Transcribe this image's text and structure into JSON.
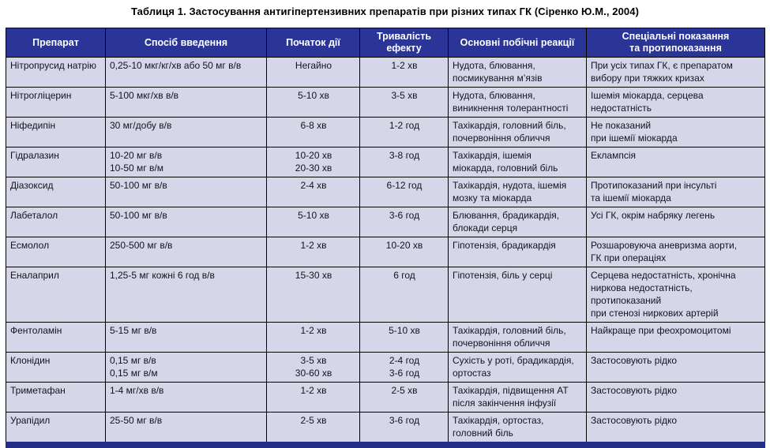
{
  "title": "Таблиця 1. Застосування антигіпертензивних препаратів при різних типах ГК (Сіренко Ю.М., 2004)",
  "colors": {
    "header_bg": "#2A3597",
    "body_cell_bg": "#D5D6E8",
    "bottom_bar": "#242E86",
    "border": "#000000",
    "header_text": "#FFFFFF",
    "body_text": "#14141E"
  },
  "table": {
    "columns": [
      {
        "key": "drug",
        "label": "Препарат"
      },
      {
        "key": "route",
        "label": "Спосіб введення"
      },
      {
        "key": "onset",
        "label": "Початок дії"
      },
      {
        "key": "duration",
        "label": "Тривалість\nефекту"
      },
      {
        "key": "side",
        "label": "Основні побічні реакції"
      },
      {
        "key": "special",
        "label": "Спеціальні показання\nта протипоказання"
      }
    ],
    "rows": [
      {
        "drug": "Нітропрусид натрію",
        "route": "0,25-10 мкг/кг/хв або 50 мг в/в",
        "onset": "Негайно",
        "duration": "1-2 хв",
        "side": "Нудота, блювання,\nпосмикування м’язів",
        "special": "При усіх типах ГК, є препаратом\nвибору при тяжких кризах"
      },
      {
        "drug": "Нітрогліцерин",
        "route": "5-100 мкг/хв в/в",
        "onset": "5-10 хв",
        "duration": "3-5 хв",
        "side": "Нудота, блювання,\nвиникнення толерантності",
        "special": "Ішемія міокарда, серцева\nнедостатність"
      },
      {
        "drug": "Ніфедипін",
        "route": "30 мг/добу в/в",
        "onset": "6-8 хв",
        "duration": "1-2 год",
        "side": "Тахікардія, головний біль,\nпочервоніння обличчя",
        "special": "Не показаний\nпри ішемії міокарда"
      },
      {
        "drug": "Гідралазин",
        "route": "10-20 мг в/в\n10-50 мг в/м",
        "onset": "10-20 хв\n20-30 хв",
        "duration": "3-8 год",
        "side": "Тахікардія, ішемія\nміокарда, головний біль",
        "special": "Еклампсія"
      },
      {
        "drug": "Діазоксид",
        "route": "50-100 мг в/в",
        "onset": "2-4 хв",
        "duration": "6-12 год",
        "side": "Тахікардія, нудота, ішемія\nмозку та міокарда",
        "special": "Протипоказаний при інсульті\nта ішемії міокарда"
      },
      {
        "drug": "Лабеталол",
        "route": "50-100 мг в/в",
        "onset": "5-10 хв",
        "duration": "3-6 год",
        "side": "Блювання, брадикардія,\nблокади серця",
        "special": "Усі ГК, окрім набряку легень"
      },
      {
        "drug": "Есмолол",
        "route": "250-500 мг в/в",
        "onset": "1-2 хв",
        "duration": "10-20 хв",
        "side": "Гіпотензія, брадикардія",
        "special": "Розшаровуюча аневризма аорти,\nГК при операціях"
      },
      {
        "drug": "Еналаприл",
        "route": "1,25-5 мг кожні 6 год в/в",
        "onset": "15-30 хв",
        "duration": "6 год",
        "side": "Гіпотензія, біль у серці",
        "special": "Серцева недостатність, хронічна\nниркова недостатність,\nпротипоказаний\nпри стенозі ниркових артерій",
        "tall": true
      },
      {
        "drug": "Фентоламін",
        "route": "5-15 мг в/в",
        "onset": "1-2 хв",
        "duration": "5-10 хв",
        "side": "Тахікардія, головний біль,\nпочервоніння обличчя",
        "special": "Найкраще при феохромоцитомі"
      },
      {
        "drug": "Клонідин",
        "route": "0,15 мг в/в\n0,15 мг в/м",
        "onset": "3-5 хв\n30-60 хв",
        "duration": "2-4 год\n3-6 год",
        "side": "Сухість у роті, брадикардія,\nортостаз",
        "special": "Застосовують рідко"
      },
      {
        "drug": "Триметафан",
        "route": "1-4 мг/хв в/в",
        "onset": "1-2 хв",
        "duration": "2-5 хв",
        "side": "Тахікардія, підвищення АТ\nпісля закінчення інфузії",
        "special": "Застосовують рідко"
      },
      {
        "drug": "Урапідил",
        "route": "25-50 мг в/в",
        "onset": "2-5 хв",
        "duration": "3-6 год",
        "side": "Тахікардія, ортостаз,\nголовний біль",
        "special": "Застосовують рідко"
      }
    ]
  }
}
